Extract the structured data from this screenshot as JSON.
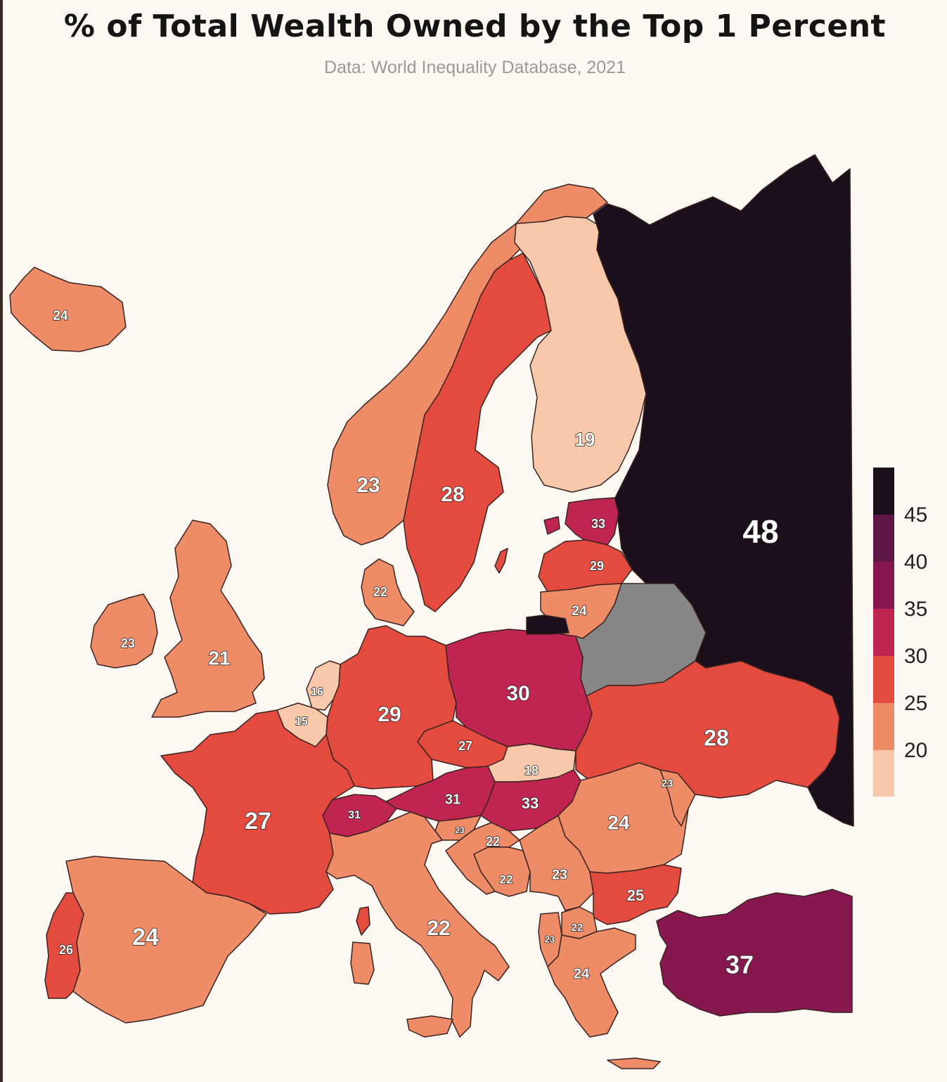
{
  "title": "% of Total Wealth Owned by the Top 1 Percent",
  "subtitle": "Data: World Inequality Database, 2021",
  "colors": {
    "background": "#fdf8f2",
    "nodata": "#878787",
    "15-20": "#f8c8aa",
    "20-25": "#ed8c66",
    "25-30": "#e34b3f",
    "30-35": "#c02552",
    "35-40": "#86174f",
    "40-45": "#5c1747",
    "45+": "#1c0f1c"
  },
  "legend": {
    "ticks": [
      "45",
      "40",
      "35",
      "30",
      "25",
      "20"
    ]
  },
  "chart_data": {
    "type": "choropleth",
    "unit": "%",
    "regions": [
      {
        "value": 24
      },
      {
        "value": 23
      },
      {
        "value": 28
      },
      {
        "value": 19
      },
      {
        "value": 48
      },
      {
        "value": 33
      },
      {
        "value": 29
      },
      {
        "value": 24
      },
      {
        "value": 22
      },
      {
        "value": 23
      },
      {
        "value": 21
      },
      {
        "value": 16
      },
      {
        "value": 15
      },
      {
        "value": 29
      },
      {
        "value": 30
      },
      {
        "value": 28
      },
      {
        "value": 27
      },
      {
        "value": 18
      },
      {
        "value": 31
      },
      {
        "value": 33
      },
      {
        "value": 31
      },
      {
        "value": 27
      },
      {
        "value": 23
      },
      {
        "value": 24
      },
      {
        "value": 23
      },
      {
        "value": 22
      },
      {
        "value": 22
      },
      {
        "value": 23
      },
      {
        "value": 25
      },
      {
        "value": 22
      },
      {
        "value": 23
      },
      {
        "value": 24
      },
      {
        "value": 22
      },
      {
        "value": 24
      },
      {
        "value": 26
      },
      {
        "value": 37
      },
      {
        "value": null
      }
    ]
  }
}
